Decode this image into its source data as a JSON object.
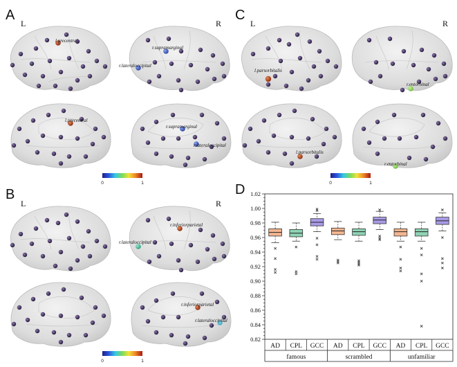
{
  "panels": [
    {
      "letter": "A",
      "left": "L",
      "right": "R",
      "regions": [
        "l.precentral",
        "r.supramarginal",
        "r.lateraloccipital",
        "l.precentral",
        "r.supramarginal",
        "r.lateraloccipital"
      ],
      "cb_min": "0",
      "cb_max": "1"
    },
    {
      "letter": "B",
      "left": "L",
      "right": "R",
      "regions": [
        "r.inferiorparietal",
        "r.lateraloccipital",
        "r.inferiorparietal",
        "r.lateraloccipital"
      ],
      "cb_min": "0",
      "cb_max": "1"
    },
    {
      "letter": "C",
      "left": "L",
      "right": "R",
      "regions": [
        "l.parsorbitalis",
        "r.entorhinal",
        "l.parsorbitalis",
        "r.entorhinal"
      ],
      "cb_min": "0",
      "cb_max": "1"
    }
  ],
  "boxplot": {
    "letter": "D",
    "yticks": [
      "1.02",
      "1.00",
      "0.98",
      "0.96",
      "0.94",
      "0.92",
      "0.90",
      "0.88",
      "0.86",
      "0.84",
      "0.82"
    ],
    "xticks": [
      "AD",
      "CPL",
      "GCC",
      "AD",
      "CPL",
      "GCC",
      "AD",
      "CPL",
      "GCC"
    ],
    "groups": [
      "famous",
      "scrambled",
      "unfamiliar"
    ]
  },
  "chart_data": {
    "type": "box",
    "ylim": [
      0.82,
      1.02
    ],
    "categories": [
      "AD",
      "CPL",
      "GCC"
    ],
    "groups": [
      "famous",
      "scrambled",
      "unfamiliar"
    ],
    "colors": {
      "AD": "#f3b690",
      "CPL": "#8fd3b4",
      "GCC": "#a99ae6"
    },
    "boxes": [
      {
        "group": "famous",
        "measure": "AD",
        "q1": 0.962,
        "median": 0.967,
        "q3": 0.972,
        "whisker_low": 0.953,
        "whisker_high": 0.981,
        "outliers": [
          0.945,
          0.931,
          0.916,
          0.912
        ]
      },
      {
        "group": "famous",
        "measure": "CPL",
        "q1": 0.961,
        "median": 0.966,
        "q3": 0.971,
        "whisker_low": 0.955,
        "whisker_high": 0.98,
        "outliers": [
          0.947,
          0.913,
          0.91
        ]
      },
      {
        "group": "famous",
        "measure": "GCC",
        "q1": 0.976,
        "median": 0.981,
        "q3": 0.986,
        "whisker_low": 0.968,
        "whisker_high": 0.993,
        "outliers": [
          0.997,
          0.999,
          0.959,
          0.95,
          0.934,
          0.93
        ]
      },
      {
        "group": "scrambled",
        "measure": "AD",
        "q1": 0.964,
        "median": 0.969,
        "q3": 0.973,
        "whisker_low": 0.957,
        "whisker_high": 0.982,
        "outliers": [
          0.929,
          0.927,
          0.925
        ]
      },
      {
        "group": "scrambled",
        "measure": "CPL",
        "q1": 0.963,
        "median": 0.968,
        "q3": 0.972,
        "whisker_low": 0.955,
        "whisker_high": 0.981,
        "outliers": [
          0.928,
          0.926,
          0.924,
          0.922
        ]
      },
      {
        "group": "scrambled",
        "measure": "GCC",
        "q1": 0.979,
        "median": 0.984,
        "q3": 0.988,
        "whisker_low": 0.971,
        "whisker_high": 0.996,
        "outliers": [
          0.998,
          0.962,
          0.959,
          0.957
        ]
      },
      {
        "group": "unfamiliar",
        "measure": "AD",
        "q1": 0.962,
        "median": 0.968,
        "q3": 0.972,
        "whisker_low": 0.955,
        "whisker_high": 0.981,
        "outliers": [
          0.947,
          0.93,
          0.918,
          0.914
        ]
      },
      {
        "group": "unfamiliar",
        "measure": "CPL",
        "q1": 0.962,
        "median": 0.968,
        "q3": 0.972,
        "whisker_low": 0.955,
        "whisker_high": 0.981,
        "outliers": [
          0.945,
          0.936,
          0.91,
          0.9,
          0.838
        ]
      },
      {
        "group": "unfamiliar",
        "measure": "GCC",
        "q1": 0.978,
        "median": 0.983,
        "q3": 0.988,
        "whisker_low": 0.969,
        "whisker_high": 0.994,
        "outliers": [
          0.998,
          0.96,
          0.931,
          0.925,
          0.918
        ]
      }
    ]
  }
}
